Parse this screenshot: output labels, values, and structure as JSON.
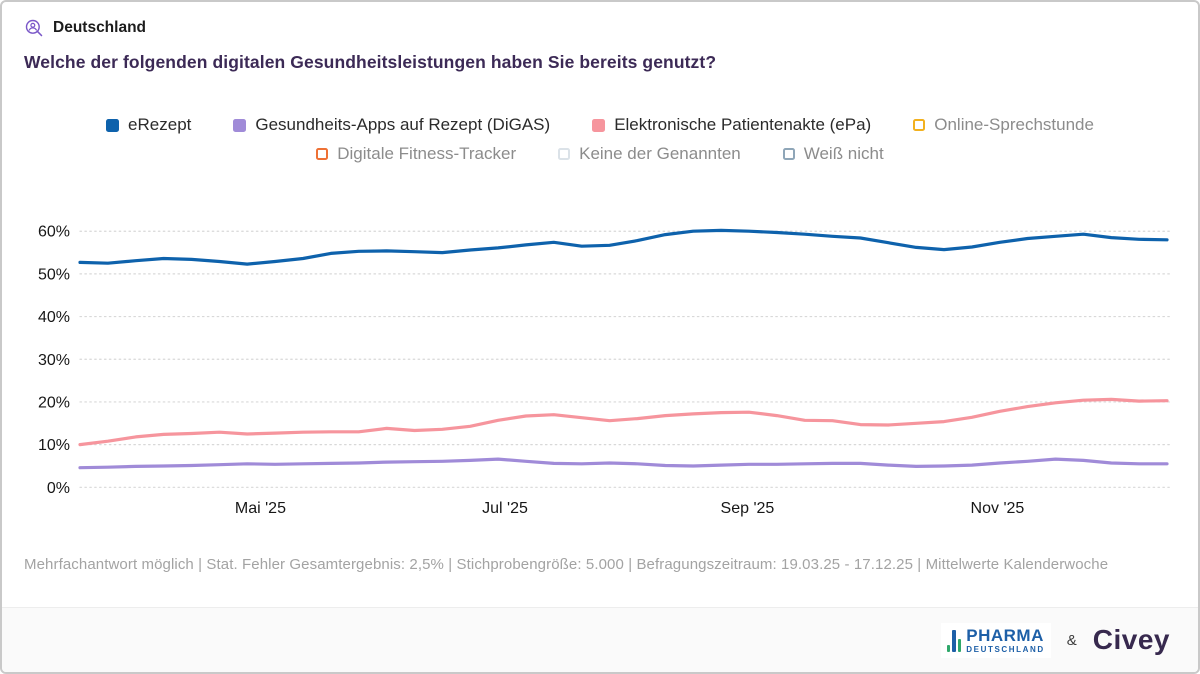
{
  "header": {
    "region_label": "Deutschland",
    "title": "Welche der folgenden digitalen Gesundheitsleistungen haben Sie bereits genutzt?"
  },
  "accent_colors": {
    "title_purple": "#3c2a56",
    "icon_purple": "#7a57c8"
  },
  "legend": {
    "rows": [
      [
        {
          "id": "erezept",
          "label": "eRezept",
          "color": "#0e62ac",
          "filled": true,
          "active": true
        },
        {
          "id": "digas",
          "label": "Gesundheits-Apps auf Rezept (DiGAS)",
          "color": "#a08bd8",
          "filled": true,
          "active": true
        },
        {
          "id": "epa",
          "label": "Elektronische Patientenakte (ePa)",
          "color": "#f6959d",
          "filled": true,
          "active": true
        },
        {
          "id": "online-sprechstunde",
          "label": "Online-Sprechstunde",
          "color": "#f2b11f",
          "filled": false,
          "active": false
        }
      ],
      [
        {
          "id": "fitness-tracker",
          "label": "Digitale Fitness-Tracker",
          "color": "#ee7135",
          "filled": false,
          "active": false
        },
        {
          "id": "keine-der-genannten",
          "label": "Keine der Genannten",
          "color": "#dbe2e8",
          "filled": false,
          "active": false
        },
        {
          "id": "weiss-nicht",
          "label": "Weiß nicht",
          "color": "#8fa6b8",
          "filled": false,
          "active": false
        }
      ]
    ]
  },
  "chart_data": {
    "type": "line",
    "title": "Welche der folgenden digitalen Gesundheitsleistungen haben Sie bereits genutzt?",
    "x_unit": "Kalenderwoche (19.03.25 - 17.12.25, wöchentliche Mittelwerte)",
    "ylim": [
      0,
      63
    ],
    "yticks": [
      0,
      10,
      20,
      30,
      40,
      50,
      60
    ],
    "ytick_suffix": "%",
    "grid": "dotted-horizontal",
    "legend_position": "top",
    "xticks": [
      {
        "label": "Mai '25",
        "pos": 0.166
      },
      {
        "label": "Jul '25",
        "pos": 0.391
      },
      {
        "label": "Sep '25",
        "pos": 0.614
      },
      {
        "label": "Nov '25",
        "pos": 0.844
      }
    ],
    "series": [
      {
        "name": "eRezept",
        "color": "#0e62ac",
        "values": [
          52.7,
          52.5,
          53.1,
          53.6,
          53.4,
          52.9,
          52.3,
          52.9,
          53.6,
          54.8,
          55.3,
          55.4,
          55.2,
          55.0,
          55.6,
          56.1,
          56.8,
          57.4,
          56.5,
          56.7,
          57.8,
          59.2,
          60.0,
          60.2,
          60.0,
          59.7,
          59.3,
          58.8,
          58.4,
          57.3,
          56.2,
          55.7,
          56.3,
          57.4,
          58.3,
          58.8,
          59.3,
          58.5,
          58.1,
          58.0
        ]
      },
      {
        "name": "Elektronische Patientenakte (ePa)",
        "color": "#f6959d",
        "values": [
          10.0,
          10.8,
          11.8,
          12.4,
          12.6,
          12.9,
          12.5,
          12.7,
          12.9,
          13.0,
          13.0,
          13.8,
          13.3,
          13.6,
          14.3,
          15.7,
          16.7,
          17.0,
          16.3,
          15.6,
          16.1,
          16.8,
          17.2,
          17.5,
          17.6,
          16.8,
          15.7,
          15.6,
          14.7,
          14.6,
          15.0,
          15.4,
          16.4,
          17.8,
          18.9,
          19.8,
          20.4,
          20.6,
          20.2,
          20.3
        ]
      },
      {
        "name": "Gesundheits-Apps auf Rezept (DiGAS)",
        "color": "#a08bd8",
        "values": [
          4.6,
          4.7,
          4.9,
          5.0,
          5.1,
          5.3,
          5.5,
          5.4,
          5.5,
          5.6,
          5.7,
          5.9,
          6.0,
          6.1,
          6.3,
          6.6,
          6.1,
          5.6,
          5.5,
          5.7,
          5.5,
          5.1,
          5.0,
          5.2,
          5.4,
          5.4,
          5.5,
          5.6,
          5.6,
          5.2,
          4.9,
          5.0,
          5.2,
          5.7,
          6.1,
          6.6,
          6.3,
          5.7,
          5.5,
          5.5
        ]
      }
    ]
  },
  "footnote": {
    "text": "Mehrfachantwort möglich | Stat. Fehler Gesamtergebnis: 2,5% | Stichprobengröße: 5.000 | Befragungszeitraum: 19.03.25 - 17.12.25 | Mittelwerte Kalenderwoche"
  },
  "footer_bar": {
    "pharma_logo": {
      "line1": "PHARMA",
      "line2": "DEUTSCHLAND"
    },
    "ampersand": "&",
    "civey_logo": "Civey"
  }
}
